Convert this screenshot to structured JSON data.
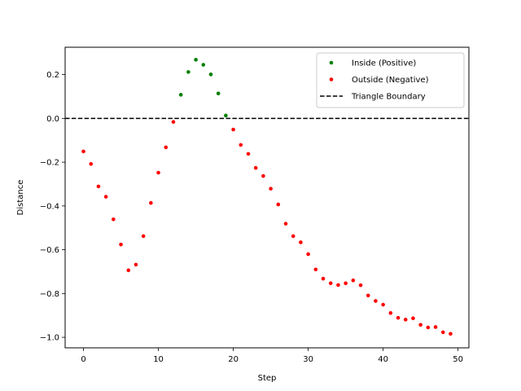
{
  "chart_data": {
    "type": "scatter",
    "title": "",
    "xlabel": "Step",
    "ylabel": "Distance",
    "xlim": [
      -2.45,
      51.45
    ],
    "ylim": [
      -1.048,
      0.325
    ],
    "xticks": [
      0,
      10,
      20,
      30,
      40,
      50
    ],
    "yticks": [
      0.2,
      0.0,
      -0.2,
      -0.4,
      -0.6,
      -0.8,
      -1.0
    ],
    "xtick_labels": [
      "0",
      "10",
      "20",
      "30",
      "40",
      "50"
    ],
    "ytick_labels": [
      "0.2",
      "0.0",
      "−0.2",
      "−0.4",
      "−0.6",
      "−0.8",
      "−1.0"
    ],
    "grid": false,
    "legend_position": "top-right",
    "series": [
      {
        "name": "Inside (Positive)",
        "color": "#008000",
        "marker": "circle",
        "x": [
          13,
          14,
          15,
          16,
          17,
          18,
          19
        ],
        "y": [
          0.108,
          0.212,
          0.268,
          0.245,
          0.201,
          0.114,
          0.013
        ]
      },
      {
        "name": "Outside (Negative)",
        "color": "#ff0000",
        "marker": "circle",
        "x": [
          0,
          1,
          2,
          3,
          4,
          5,
          6,
          7,
          8,
          9,
          10,
          11,
          12,
          20,
          21,
          22,
          23,
          24,
          25,
          26,
          27,
          28,
          29,
          30,
          31,
          32,
          33,
          34,
          35,
          36,
          37,
          38,
          39,
          40,
          41,
          42,
          43,
          44,
          45,
          46,
          47,
          48,
          49
        ],
        "y": [
          -0.151,
          -0.208,
          -0.311,
          -0.358,
          -0.461,
          -0.576,
          -0.694,
          -0.668,
          -0.538,
          -0.386,
          -0.248,
          -0.132,
          -0.016,
          -0.051,
          -0.121,
          -0.162,
          -0.226,
          -0.263,
          -0.321,
          -0.393,
          -0.481,
          -0.538,
          -0.566,
          -0.62,
          -0.69,
          -0.732,
          -0.753,
          -0.761,
          -0.753,
          -0.74,
          -0.762,
          -0.809,
          -0.834,
          -0.851,
          -0.889,
          -0.911,
          -0.919,
          -0.913,
          -0.943,
          -0.955,
          -0.953,
          -0.977,
          -0.984
        ]
      }
    ],
    "reference_lines": [
      {
        "name": "Triangle Boundary",
        "orientation": "horizontal",
        "y": 0.0,
        "color": "#000000",
        "style": "dashed"
      }
    ]
  }
}
